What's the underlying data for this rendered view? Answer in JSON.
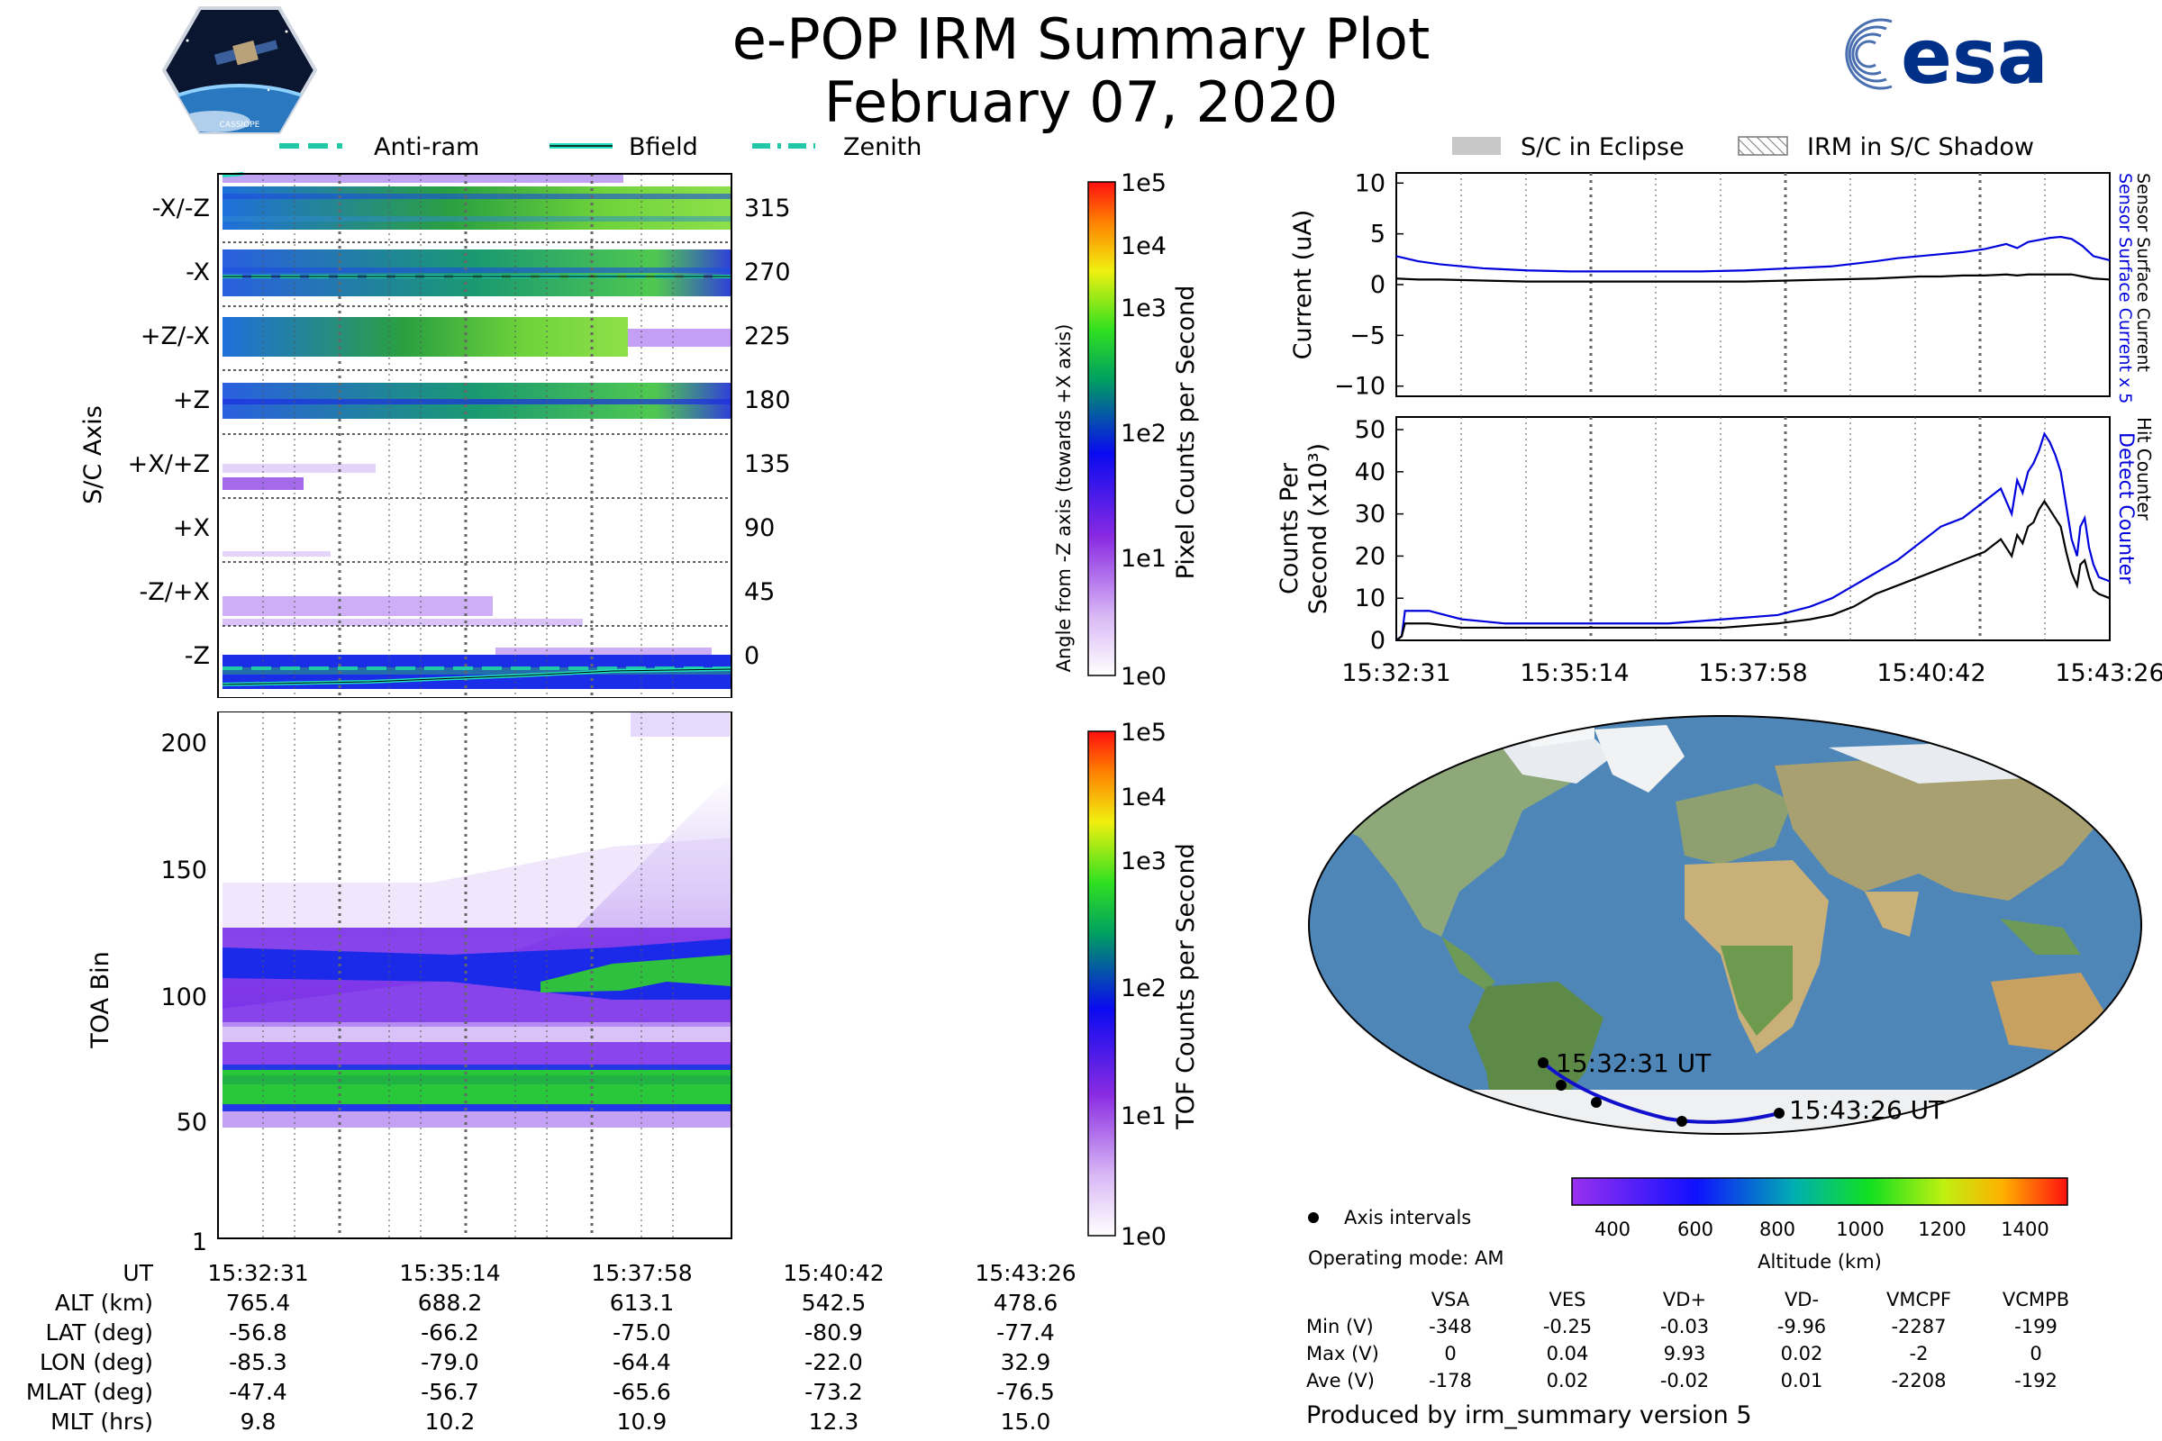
{
  "header": {
    "title": "e-POP IRM Summary Plot",
    "date": "February 07, 2020",
    "mission_logo_text": "CASSIOPE",
    "agency_logo_text": "esa"
  },
  "colors": {
    "bfield": "#20e0c0",
    "sensor_current": "#0000dd",
    "counter": "#000000",
    "eclipse_patch": "#c8c8c8",
    "track": "#1010cc"
  },
  "legend_top": {
    "antiram": "Anti-ram",
    "bfield": "Bfield",
    "zenith": "Zenith"
  },
  "legend_right": {
    "eclipse": "S/C in Eclipse",
    "shadow": "IRM in S/C Shadow"
  },
  "axis_panel": {
    "ylabel": "S/C Axis",
    "rows": [
      "-X/-Z",
      "-X",
      "+Z/-X",
      "+Z",
      "+X/+Z",
      "+X",
      "-Z/+X",
      "-Z"
    ],
    "angles": [
      "315",
      "270",
      "225",
      "180",
      "135",
      "90",
      "45",
      "0"
    ],
    "right_label": "Angle from -Z axis (towards +X axis)",
    "colorbar_label": "Pixel Counts per Second",
    "colorbar_ticks": [
      "1e5",
      "1e4",
      "1e3",
      "1e2",
      "1e1",
      "1e0"
    ]
  },
  "toa_panel": {
    "ylabel": "TOA Bin",
    "yticks": [
      "200",
      "150",
      "100",
      "50",
      "1"
    ],
    "colorbar_label": "TOF Counts per Second",
    "colorbar_ticks": [
      "1e5",
      "1e4",
      "1e3",
      "1e2",
      "1e1",
      "1e0"
    ]
  },
  "chart_data": [
    {
      "type": "line",
      "title": "Current",
      "ylabel": "Current (uA)",
      "ylim": [
        -11,
        11
      ],
      "yticks": [
        "10",
        "5",
        "0",
        "−5",
        "−10"
      ],
      "xlim": [
        0,
        655
      ],
      "right_label_blue": "Sensor Surface Current x 5",
      "right_label_black": "Sensor Surface Current",
      "x": [
        0,
        20,
        40,
        80,
        120,
        160,
        200,
        240,
        280,
        320,
        360,
        400,
        440,
        460,
        480,
        500,
        520,
        540,
        560,
        570,
        580,
        590,
        600,
        610,
        620,
        630,
        640,
        655
      ],
      "series": [
        {
          "name": "Sensor Surface Current x 5",
          "values": [
            2.8,
            2.3,
            2.0,
            1.6,
            1.4,
            1.3,
            1.3,
            1.3,
            1.3,
            1.4,
            1.6,
            1.8,
            2.3,
            2.6,
            2.8,
            3.0,
            3.2,
            3.5,
            4.0,
            3.6,
            4.2,
            4.4,
            4.6,
            4.7,
            4.5,
            3.8,
            2.8,
            2.4
          ]
        },
        {
          "name": "Sensor Surface Current",
          "values": [
            0.6,
            0.5,
            0.5,
            0.4,
            0.3,
            0.3,
            0.3,
            0.3,
            0.3,
            0.3,
            0.4,
            0.5,
            0.6,
            0.7,
            0.8,
            0.8,
            0.9,
            0.9,
            1.0,
            0.9,
            1.0,
            1.0,
            1.0,
            1.0,
            1.0,
            0.8,
            0.6,
            0.5
          ]
        }
      ]
    },
    {
      "type": "line",
      "title": "Counts",
      "ylabel": "Counts Per",
      "ylabel2": "Second (x10³)",
      "ylim": [
        0,
        53
      ],
      "yticks": [
        "50",
        "40",
        "30",
        "20",
        "10",
        "0"
      ],
      "xlim": [
        0,
        655
      ],
      "xticks": [
        "15:32:31",
        "15:35:14",
        "15:37:58",
        "15:40:42",
        "15:43:26"
      ],
      "right_label_blue": "Detect Counter",
      "right_label_black": "Hit Counter",
      "x": [
        0,
        5,
        8,
        30,
        60,
        100,
        150,
        200,
        250,
        300,
        350,
        380,
        400,
        420,
        440,
        460,
        480,
        500,
        520,
        540,
        555,
        565,
        570,
        575,
        580,
        585,
        590,
        595,
        600,
        605,
        610,
        615,
        620,
        625,
        628,
        632,
        636,
        640,
        645,
        655
      ],
      "series": [
        {
          "name": "Detect Counter",
          "values": [
            0,
            1,
            7,
            7,
            5,
            4,
            4,
            4,
            4,
            5,
            6,
            8,
            10,
            13,
            16,
            19,
            23,
            27,
            29,
            33,
            36,
            30,
            38,
            35,
            40,
            42,
            45,
            49,
            47,
            44,
            40,
            32,
            24,
            20,
            27,
            29,
            22,
            18,
            15,
            14
          ]
        },
        {
          "name": "Hit Counter",
          "values": [
            0,
            1,
            4,
            4,
            3,
            3,
            3,
            3,
            3,
            3,
            4,
            5,
            6,
            8,
            11,
            13,
            15,
            17,
            19,
            21,
            24,
            20,
            25,
            23,
            27,
            28,
            31,
            33,
            31,
            29,
            27,
            21,
            16,
            13,
            18,
            19,
            15,
            12,
            11,
            10
          ]
        }
      ]
    }
  ],
  "map": {
    "start_label": "15:32:31 UT",
    "end_label": "15:43:26 UT",
    "altitude_label": "Altitude (km)",
    "altitude_ticks": [
      "400",
      "600",
      "800",
      "1000",
      "1200",
      "1400"
    ],
    "legend_dot": "Axis intervals",
    "operating_mode": "Operating mode: AM"
  },
  "volt_table": {
    "headers": [
      "VSA",
      "VES",
      "VD+",
      "VD-",
      "VMCPF",
      "VCMPB"
    ],
    "rows": [
      {
        "label": "Min (V)",
        "values": [
          "-348",
          "-0.25",
          "-0.03",
          "-9.96",
          "-2287",
          "-199"
        ]
      },
      {
        "label": "Max (V)",
        "values": [
          "0",
          "0.04",
          "9.93",
          "0.02",
          "-2",
          "0"
        ]
      },
      {
        "label": "Ave (V)",
        "values": [
          "-178",
          "0.02",
          "-0.02",
          "0.01",
          "-2208",
          "-192"
        ]
      }
    ]
  },
  "ephemeris": {
    "header_label": "UT",
    "times": [
      "15:32:31",
      "15:35:14",
      "15:37:58",
      "15:40:42",
      "15:43:26"
    ],
    "rows": [
      {
        "label": "ALT (km)",
        "values": [
          "765.4",
          "688.2",
          "613.1",
          "542.5",
          "478.6"
        ]
      },
      {
        "label": "LAT (deg)",
        "values": [
          "-56.8",
          "-66.2",
          "-75.0",
          "-80.9",
          "-77.4"
        ]
      },
      {
        "label": "LON (deg)",
        "values": [
          "-85.3",
          "-79.0",
          "-64.4",
          "-22.0",
          "32.9"
        ]
      },
      {
        "label": "MLAT (deg)",
        "values": [
          "-47.4",
          "-56.7",
          "-65.6",
          "-73.2",
          "-76.5"
        ]
      },
      {
        "label": "MLT (hrs)",
        "values": [
          "9.8",
          "10.2",
          "10.9",
          "12.3",
          "15.0"
        ]
      }
    ]
  },
  "footer": "Produced by irm_summary version 5"
}
